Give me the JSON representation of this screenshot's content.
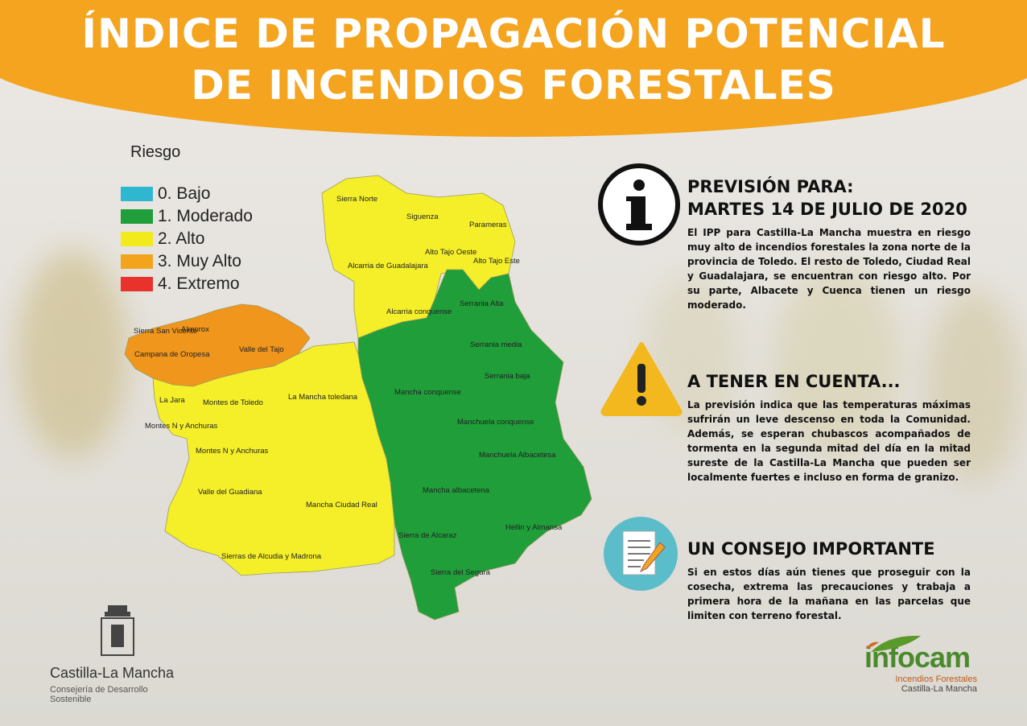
{
  "title": {
    "line1": "ÍNDICE DE PROPAGACIÓN POTENCIAL",
    "line2": "DE INCENDIOS FORESTALES"
  },
  "legend": {
    "title": "Riesgo",
    "items": [
      {
        "label": "0. Bajo",
        "color": "#2fb6d0"
      },
      {
        "label": "1. Moderado",
        "color": "#1f9e3a"
      },
      {
        "label": "2. Alto",
        "color": "#f2ea1c"
      },
      {
        "label": "3. Muy Alto",
        "color": "#f2a51c"
      },
      {
        "label": "4. Extremo",
        "color": "#e8322b"
      }
    ]
  },
  "colors": {
    "alto": "#f5ef2a",
    "moderado": "#1f9e3a",
    "muy_alto": "#f0961c",
    "header": "#f4a41f"
  },
  "map_labels": [
    "Sierra Norte",
    "Siguenza",
    "Parameras",
    "Alto Tajo Oeste",
    "Alto Tajo Este",
    "Alcarria de Guadalajara",
    "Serrania Alta",
    "Alcarria conquense",
    "Sierra San Vicente",
    "Almorox",
    "Campana de Oropesa",
    "Valle del Tajo",
    "Serrania media",
    "Serrania baja",
    "La Mancha toledana",
    "La Jara",
    "Montes de Toledo",
    "Mancha conquense",
    "Montes N y Anchuras",
    "Manchuela conquense",
    "Montes N y Anchuras",
    "Manchuela Albacetesa",
    "Valle del Guadiana",
    "Mancha albacetena",
    "Mancha Ciudad Real",
    "Hellin y Almansa",
    "Sierra de Alcaraz",
    "Sierras de Alcudia y Madrona",
    "Sierra del Segura"
  ],
  "info": {
    "forecast": {
      "heading1": "PREVISIÓN PARA:",
      "heading2": "MARTES 14 DE JULIO DE 2020",
      "text": "El IPP para Castilla-La Mancha muestra en riesgo muy alto de incendios forestales la zona norte de la provincia de Toledo. El resto de Toledo, Ciudad Real y Guadalajara, se encuentran con riesgo alto. Por su parte, Albacete y Cuenca tienen un riesgo moderado.",
      "icon": "info-icon"
    },
    "warning": {
      "heading": "A TENER EN CUENTA...",
      "text": "La previsión indica que las temperaturas máximas sufrirán un leve descenso en toda la Comunidad. Además, se esperan chubascos acompañados de tormenta en la segunda mitad del día en la mitad sureste de la Castilla-La Mancha que pueden ser localmente fuertes e incluso en forma de granizo.",
      "icon": "warning-icon"
    },
    "advice": {
      "heading": "UN CONSEJO IMPORTANTE",
      "text": "Si en estos días aún tienes que proseguir con la cosecha, extrema las precauciones y trabaja a primera hora de la mañana en las parcelas que limiten con terreno forestal.",
      "icon": "document-pencil-icon"
    }
  },
  "logos": {
    "clm_name": "Castilla-La Mancha",
    "clm_sub": "Consejería de Desarrollo Sostenible",
    "infocam_name": "infocam",
    "infocam_sub1": "Incendios Forestales",
    "infocam_sub2": "Castilla-La Mancha"
  }
}
